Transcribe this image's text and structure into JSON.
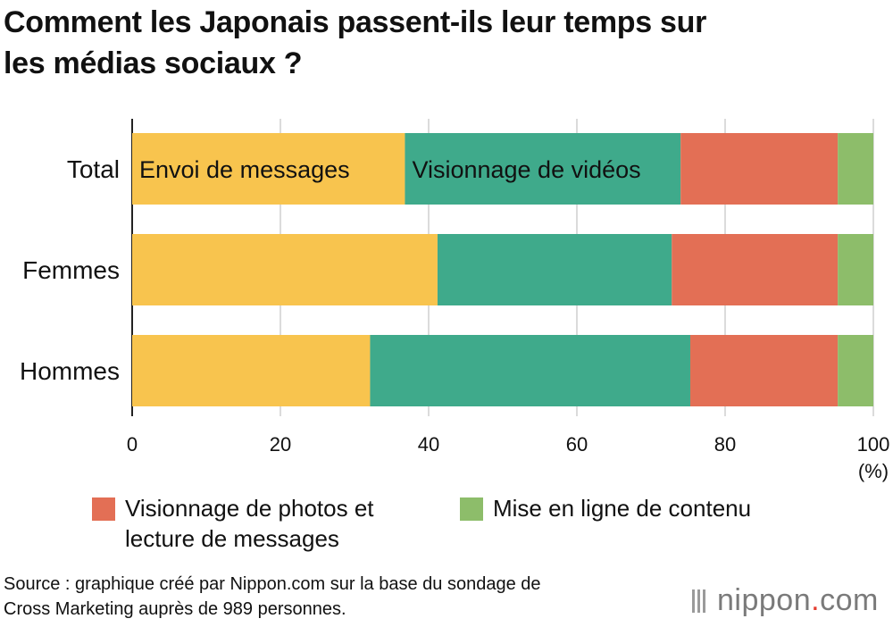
{
  "title_lines": [
    "Comment les Japonais passent-ils leur temps sur",
    "les médias sociaux ?"
  ],
  "source_lines": [
    "Source : graphique créé par Nippon.com sur la base du sondage de",
    "Cross Marketing auprès de 989 personnes."
  ],
  "logo": {
    "name": "nippon",
    "dot": ".",
    "suffix": "com"
  },
  "legend": [
    {
      "lines": [
        "Visionnage de photos et",
        "lecture de messages"
      ],
      "color": "#e36f55"
    },
    {
      "lines": [
        "Mise en ligne de contenu"
      ],
      "color": "#8dbd6a"
    }
  ],
  "chart_data": {
    "type": "bar",
    "orientation": "horizontal",
    "stacked": true,
    "categories": [
      "Total",
      "Femmes",
      "Hommes"
    ],
    "series": [
      {
        "name": "Envoi de messages",
        "color": "#f8c44e",
        "values": [
          36.8,
          41.2,
          32.1
        ]
      },
      {
        "name": "Visionnage de vidéos",
        "color": "#3faa8b",
        "values": [
          37.2,
          31.6,
          43.2
        ]
      },
      {
        "name": "Visionnage de photos et lecture de messages",
        "color": "#e36f55",
        "values": [
          21.2,
          22.4,
          19.9
        ]
      },
      {
        "name": "Mise en ligne de contenu",
        "color": "#8dbd6a",
        "values": [
          4.8,
          4.8,
          4.8
        ]
      }
    ],
    "in_bar_labels": [
      {
        "series": 0,
        "category": 0,
        "text": "Envoi de messages"
      },
      {
        "series": 1,
        "category": 0,
        "text": "Visionnage de vidéos"
      }
    ],
    "xlim": [
      0,
      100
    ],
    "xticks": [
      0,
      20,
      40,
      60,
      80,
      100
    ],
    "xunit": "(%)",
    "grid": true,
    "legend_position": "bottom"
  }
}
